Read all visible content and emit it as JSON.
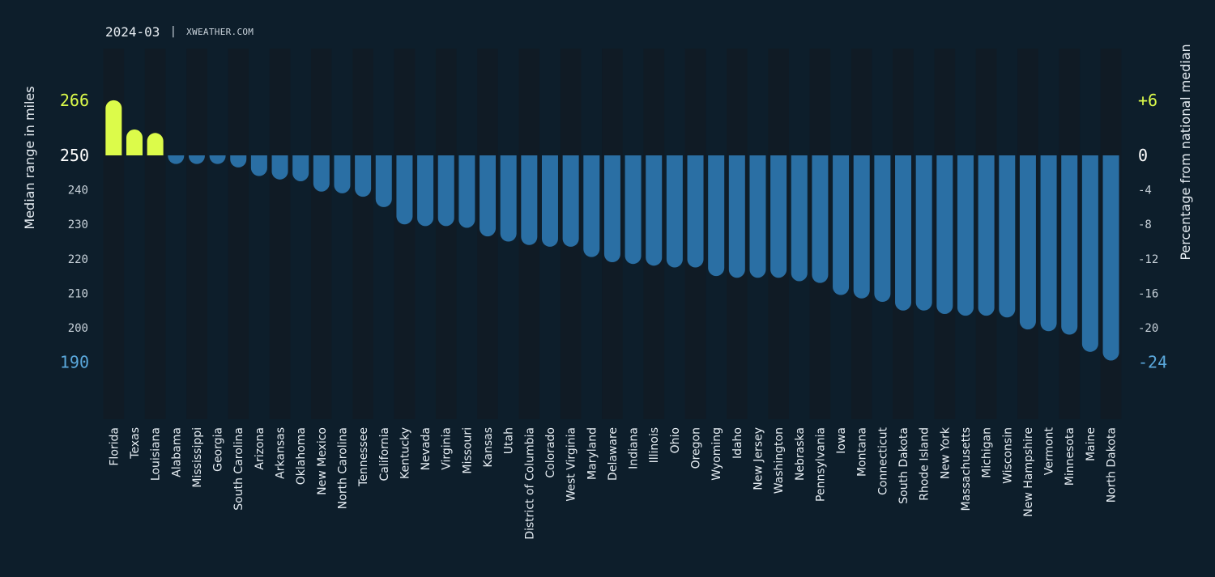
{
  "header": {
    "date": "2024-03",
    "source": "XWEATHER.COM"
  },
  "colors": {
    "background": "#0d1e2b",
    "column_band": "#101b25",
    "positive_bar": "#dcfb4a",
    "negative_bar": "#2a6fa4",
    "top_tick": "#dcfb4a",
    "bottom_tick": "#5aa8dc"
  },
  "chart_data": {
    "type": "bar",
    "baseline": 250,
    "ylabel": "Median range in miles",
    "y2label": "Percentage from national median",
    "ylim": [
      190,
      266
    ],
    "yticks": [
      {
        "value": 266,
        "label": "266",
        "style": "top"
      },
      {
        "value": 250,
        "label": "250",
        "style": "base"
      },
      {
        "value": 240,
        "label": "240",
        "style": "normal"
      },
      {
        "value": 230,
        "label": "230",
        "style": "normal"
      },
      {
        "value": 220,
        "label": "220",
        "style": "normal"
      },
      {
        "value": 210,
        "label": "210",
        "style": "normal"
      },
      {
        "value": 200,
        "label": "200",
        "style": "normal"
      },
      {
        "value": 190,
        "label": "190",
        "style": "bottom"
      }
    ],
    "y2ticks": [
      {
        "value": 266,
        "label": "+6",
        "style": "top"
      },
      {
        "value": 250,
        "label": "0",
        "style": "base"
      },
      {
        "value": 240,
        "label": "-4",
        "style": "normal"
      },
      {
        "value": 230,
        "label": "-8",
        "style": "normal"
      },
      {
        "value": 220,
        "label": "-12",
        "style": "normal"
      },
      {
        "value": 210,
        "label": "-16",
        "style": "normal"
      },
      {
        "value": 200,
        "label": "-20",
        "style": "normal"
      },
      {
        "value": 190,
        "label": "-24",
        "style": "bottom"
      }
    ],
    "grid": false,
    "categories": [
      "Florida",
      "Texas",
      "Louisiana",
      "Alabama",
      "Mississippi",
      "Georgia",
      "South Carolina",
      "Arizona",
      "Arkansas",
      "Oklahoma",
      "New Mexico",
      "North Carolina",
      "Tennessee",
      "California",
      "Kentucky",
      "Nevada",
      "Virginia",
      "Missouri",
      "Kansas",
      "Utah",
      "District of Columbia",
      "Colorado",
      "West Virginia",
      "Maryland",
      "Delaware",
      "Indiana",
      "Illinois",
      "Ohio",
      "Oregon",
      "Wyoming",
      "Idaho",
      "New Jersey",
      "Washington",
      "Nebraska",
      "Pennsylvania",
      "Iowa",
      "Montana",
      "Connecticut",
      "South Dakota",
      "Rhode Island",
      "New York",
      "Massachusetts",
      "Michigan",
      "Wisconsin",
      "New Hampshire",
      "Vermont",
      "Minnesota",
      "Maine",
      "North Dakota"
    ],
    "values": [
      266,
      257.5,
      256.5,
      247.5,
      247.5,
      247.5,
      246.5,
      244,
      243,
      242.5,
      239.5,
      239,
      238,
      235,
      230,
      229.5,
      229.5,
      229,
      226.5,
      225,
      224,
      223.5,
      223.5,
      220.5,
      219,
      218.5,
      218,
      217.5,
      217.5,
      215,
      214.5,
      214.5,
      214.5,
      213.5,
      213,
      209.5,
      208.5,
      207.5,
      205,
      205,
      204,
      203.5,
      203.5,
      203,
      199.5,
      199,
      198,
      193,
      190.5
    ]
  }
}
